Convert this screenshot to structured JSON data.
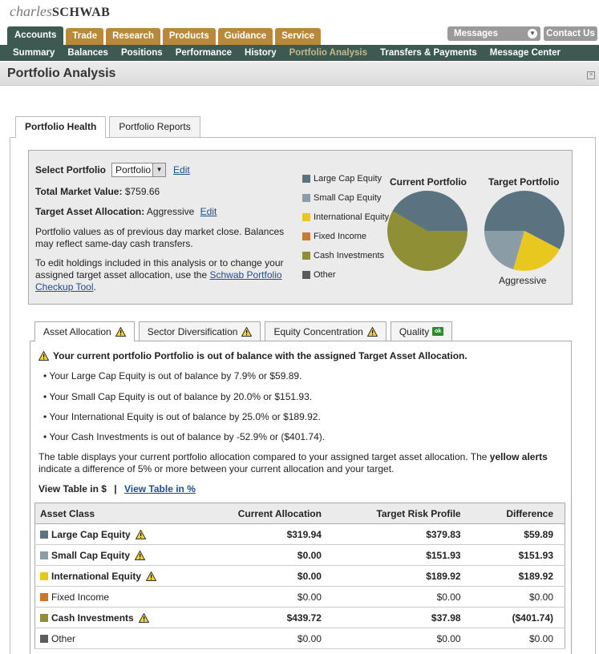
{
  "brand": {
    "word1": "charles",
    "word2": "SCHWAB"
  },
  "top_tabs": [
    {
      "label": "Accounts",
      "active": true
    },
    {
      "label": "Trade",
      "active": false
    },
    {
      "label": "Research",
      "active": false
    },
    {
      "label": "Products",
      "active": false
    },
    {
      "label": "Guidance",
      "active": false
    },
    {
      "label": "Service",
      "active": false
    }
  ],
  "utility": {
    "messages": "Messages",
    "contact": "Contact Us"
  },
  "sub_nav": [
    {
      "label": "Summary",
      "active": false
    },
    {
      "label": "Balances",
      "active": false
    },
    {
      "label": "Positions",
      "active": false
    },
    {
      "label": "Performance",
      "active": false
    },
    {
      "label": "History",
      "active": false
    },
    {
      "label": "Portfolio Analysis",
      "active": true
    },
    {
      "label": "Transfers & Payments",
      "active": false
    },
    {
      "label": "Message Center",
      "active": false
    }
  ],
  "page_title": "Portfolio Analysis",
  "portfolio_tabs": [
    {
      "label": "Portfolio Health",
      "active": true
    },
    {
      "label": "Portfolio Reports",
      "active": false
    }
  ],
  "summary": {
    "select_label": "Select Portfolio",
    "select_value": "Portfolio",
    "edit": "Edit",
    "tmv_label": "Total Market Value:",
    "tmv_value": "$759.66",
    "taa_label": "Target Asset Allocation:",
    "taa_value": "Aggressive",
    "note1_line1": "Portfolio values as of previous day market close. Balances",
    "note1_line2": "may reflect same-day cash transfers.",
    "note2_line1": "To edit holdings included in this analysis or to change your",
    "note2_line2_pre": "assigned target asset allocation, use the ",
    "note2_link1": "Schwab Portfolio",
    "note2_link2": "Checkup Tool",
    "note2_end": "."
  },
  "legend": [
    {
      "label": "Large Cap Equity",
      "color": "#5a7380"
    },
    {
      "label": "Small Cap Equity",
      "color": "#8a9da6"
    },
    {
      "label": "International Equity",
      "color": "#e8c81e"
    },
    {
      "label": "Fixed Income",
      "color": "#c87a2a"
    },
    {
      "label": "Cash Investments",
      "color": "#8f8f35"
    },
    {
      "label": "Other",
      "color": "#5c5c5c"
    }
  ],
  "pies": {
    "current_title": "Current Portfolio",
    "target_title": "Target Portfolio",
    "target_sub": "Aggressive"
  },
  "analysis_tabs": [
    {
      "label": "Asset Allocation",
      "icon": "warning-icon",
      "active": true
    },
    {
      "label": "Sector Diversification",
      "icon": "warning-icon",
      "active": false
    },
    {
      "label": "Equity Concentration",
      "icon": "warning-icon",
      "active": false
    },
    {
      "label": "Quality",
      "icon": "ok-icon",
      "active": false
    }
  ],
  "alert": {
    "headline": "Your current portfolio Portfolio is out of balance with the assigned Target Asset Allocation.",
    "bullets": [
      "• Your Large Cap Equity is out of balance by 7.9% or $59.89.",
      "• Your Small Cap Equity is out of balance by 20.0% or $151.93.",
      "• Your International Equity is out of balance by 25.0% or $189.92.",
      "• Your Cash Investments is out of balance by -52.9% or ($401.74)."
    ],
    "para_pre": "The table displays your current portfolio allocation compared to your assigned target asset allocation. The ",
    "para_bold": "yellow alerts",
    "para_post": " indicate a difference of 5% or more between your current allocation and your target."
  },
  "view": {
    "dollars": "View Table in $",
    "sep": "|",
    "percent": "View Table in %"
  },
  "table": {
    "headers": [
      "Asset Class",
      "Current Allocation",
      "Target Risk Profile",
      "Difference"
    ],
    "rows": [
      {
        "asset": "Large Cap Equity",
        "color": "#5a7380",
        "alert": true,
        "current": "$319.94",
        "target": "$379.83",
        "diff": "$59.89"
      },
      {
        "asset": "Small Cap Equity",
        "color": "#8a9da6",
        "alert": true,
        "current": "$0.00",
        "target": "$151.93",
        "diff": "$151.93"
      },
      {
        "asset": "International Equity",
        "color": "#e8c81e",
        "alert": true,
        "current": "$0.00",
        "target": "$189.92",
        "diff": "$189.92"
      },
      {
        "asset": "Fixed Income",
        "color": "#c87a2a",
        "alert": false,
        "current": "$0.00",
        "target": "$0.00",
        "diff": "$0.00"
      },
      {
        "asset": "Cash Investments",
        "color": "#8f8f35",
        "alert": true,
        "current": "$439.72",
        "target": "$37.98",
        "diff": "($401.74)"
      },
      {
        "asset": "Other",
        "color": "#5c5c5c",
        "alert": false,
        "current": "$0.00",
        "target": "$0.00",
        "diff": "$0.00"
      }
    ]
  }
}
